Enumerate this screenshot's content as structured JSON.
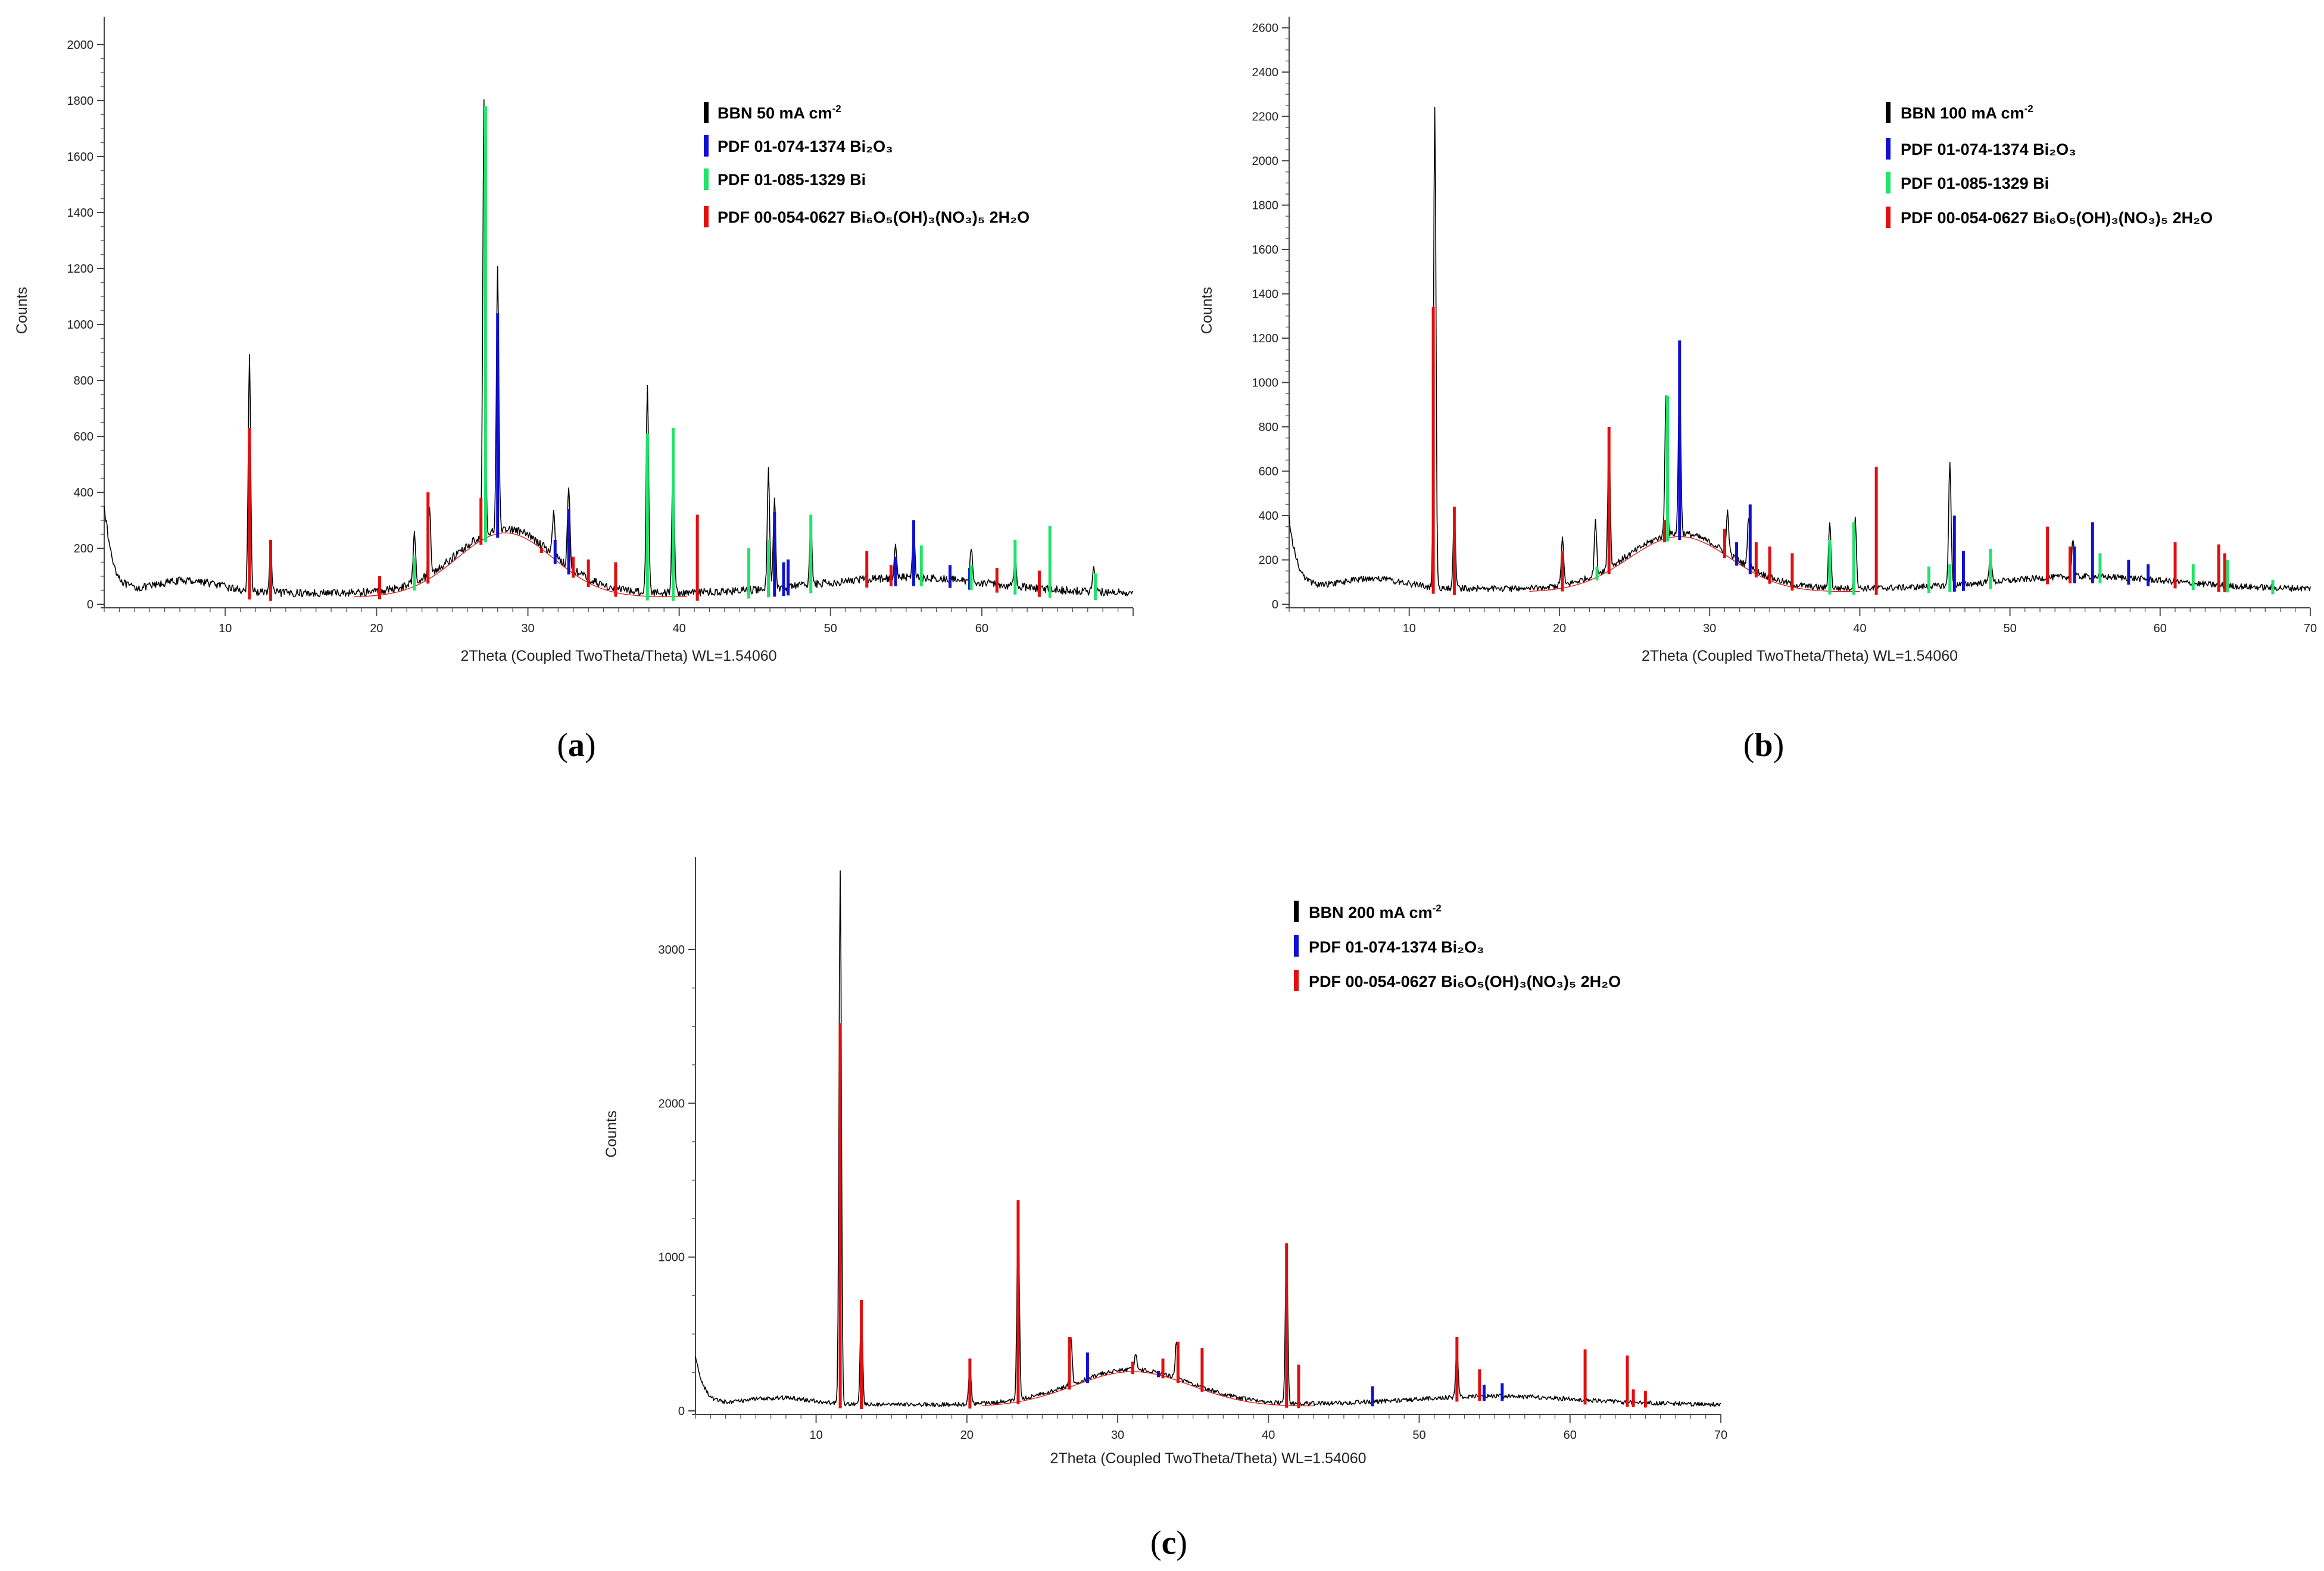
{
  "colors": {
    "measured": "#000000",
    "bi2o3": "#1010d0",
    "bi": "#22e36a",
    "bbn_ref": "#e01010",
    "background_fit": "#e01010"
  },
  "panels": [
    {
      "label_letter": "a",
      "xlabel": "2Theta (Coupled TwoTheta/Theta) WL=1.54060",
      "ylabel": "Counts",
      "xticks": [
        "10",
        "20",
        "30",
        "40",
        "50",
        "60"
      ],
      "yticks": [
        "0",
        "200",
        "400",
        "600",
        "800",
        "1000",
        "1200",
        "1400",
        "1600",
        "1800",
        "2000"
      ],
      "legend": [
        {
          "color_key": "measured",
          "text": "BBN 50 mA cm",
          "sup": "-2"
        },
        {
          "color_key": "bi2o3",
          "text": "PDF 01-074-1374 Bi₂O₃",
          "sup": ""
        },
        {
          "color_key": "bi",
          "text": "PDF 01-085-1329 Bi",
          "sup": ""
        },
        {
          "color_key": "bbn_ref",
          "text": "PDF 00-054-0627 Bi₆O₅(OH)₃(NO₃)₅ 2H₂O",
          "sup": ""
        }
      ]
    },
    {
      "label_letter": "b",
      "xlabel": "2Theta (Coupled TwoTheta/Theta) WL=1.54060",
      "ylabel": "Counts",
      "xticks": [
        "10",
        "20",
        "30",
        "40",
        "50",
        "60",
        "70"
      ],
      "yticks": [
        "0",
        "200",
        "400",
        "600",
        "800",
        "1000",
        "1200",
        "1400",
        "1600",
        "1800",
        "2000",
        "2200",
        "2400",
        "2600"
      ],
      "legend": [
        {
          "color_key": "measured",
          "text": "BBN 100 mA cm",
          "sup": "-2"
        },
        {
          "color_key": "bi2o3",
          "text": "PDF 01-074-1374 Bi₂O₃",
          "sup": ""
        },
        {
          "color_key": "bi",
          "text": "PDF 01-085-1329 Bi",
          "sup": ""
        },
        {
          "color_key": "bbn_ref",
          "text": "PDF 00-054-0627 Bi₆O₅(OH)₃(NO₃)₅ 2H₂O",
          "sup": ""
        }
      ]
    },
    {
      "label_letter": "c",
      "xlabel": "2Theta (Coupled TwoTheta/Theta) WL=1.54060",
      "ylabel": "Counts",
      "xticks": [
        "10",
        "20",
        "30",
        "40",
        "50",
        "60",
        "70"
      ],
      "yticks": [
        "0",
        "1000",
        "2000",
        "3000"
      ],
      "legend": [
        {
          "color_key": "measured",
          "text": "BBN 200 mA cm",
          "sup": "-2"
        },
        {
          "color_key": "bi2o3",
          "text": "PDF 01-074-1374 Bi₂O₃",
          "sup": ""
        },
        {
          "color_key": "bbn_ref",
          "text": "PDF 00-054-0627 Bi₆O₅(OH)₃(NO₃)₅ 2H₂O",
          "sup": ""
        }
      ]
    }
  ],
  "chart_data": [
    {
      "type": "line",
      "title": "(a) BBN 50 mA cm-2",
      "xlabel": "2Theta (Coupled TwoTheta/Theta) WL=1.54060",
      "ylabel": "Counts",
      "xlim": [
        2,
        70
      ],
      "ylim": [
        0,
        2100
      ],
      "xticks": [
        10,
        20,
        30,
        40,
        50,
        60
      ],
      "yticks": [
        0,
        200,
        400,
        600,
        800,
        1000,
        1200,
        1400,
        1600,
        1800,
        2000
      ],
      "measured_peaks": [
        {
          "x": 11.6,
          "y": 880
        },
        {
          "x": 13.0,
          "y": 190
        },
        {
          "x": 22.5,
          "y": 270
        },
        {
          "x": 23.5,
          "y": 350
        },
        {
          "x": 27.1,
          "y": 1790
        },
        {
          "x": 28.0,
          "y": 1200
        },
        {
          "x": 31.7,
          "y": 330
        },
        {
          "x": 32.7,
          "y": 420
        },
        {
          "x": 37.9,
          "y": 790
        },
        {
          "x": 39.6,
          "y": 560
        },
        {
          "x": 45.9,
          "y": 480
        },
        {
          "x": 46.3,
          "y": 380
        },
        {
          "x": 48.7,
          "y": 300
        },
        {
          "x": 54.3,
          "y": 220
        },
        {
          "x": 55.5,
          "y": 260
        },
        {
          "x": 59.3,
          "y": 200
        },
        {
          "x": 62.2,
          "y": 170
        },
        {
          "x": 67.4,
          "y": 130
        }
      ],
      "series": [
        {
          "name": "PDF 01-074-1374 Bi2O3",
          "color_key": "bi2o3",
          "x": [
            28.0,
            31.8,
            32.7,
            46.3,
            46.9,
            47.2,
            54.3,
            55.5,
            57.9,
            59.2
          ],
          "y": [
            1040,
            230,
            340,
            330,
            150,
            160,
            170,
            300,
            140,
            130
          ]
        },
        {
          "name": "PDF 01-085-1329 Bi",
          "color_key": "bi",
          "x": [
            22.5,
            27.2,
            37.9,
            39.6,
            44.6,
            45.9,
            48.7,
            56.0,
            59.3,
            62.2,
            64.5,
            67.5
          ],
          "y": [
            170,
            1780,
            610,
            630,
            200,
            230,
            320,
            210,
            140,
            230,
            280,
            110
          ]
        },
        {
          "name": "PDF 00-054-0627 Bi6O5(OH)3(NO3)5 2H2O",
          "color_key": "bbn_ref",
          "x": [
            11.6,
            13.0,
            20.2,
            23.4,
            26.9,
            30.9,
            33.0,
            34.0,
            35.8,
            41.2,
            52.4,
            54.0,
            61.0,
            63.8
          ],
          "y": [
            630,
            230,
            100,
            400,
            380,
            200,
            170,
            160,
            150,
            320,
            190,
            140,
            130,
            120
          ]
        }
      ]
    },
    {
      "type": "line",
      "title": "(b) BBN 100 mA cm-2",
      "xlabel": "2Theta (Coupled TwoTheta/Theta) WL=1.54060",
      "ylabel": "Counts",
      "xlim": [
        2,
        70
      ],
      "ylim": [
        0,
        2650
      ],
      "xticks": [
        10,
        20,
        30,
        40,
        50,
        60,
        70
      ],
      "yticks": [
        0,
        200,
        400,
        600,
        800,
        1000,
        1200,
        1400,
        1600,
        1800,
        2000,
        2200,
        2400,
        2600
      ],
      "measured_peaks": [
        {
          "x": 11.7,
          "y": 2230
        },
        {
          "x": 13.0,
          "y": 420
        },
        {
          "x": 20.2,
          "y": 300
        },
        {
          "x": 22.4,
          "y": 370
        },
        {
          "x": 23.3,
          "y": 760
        },
        {
          "x": 27.1,
          "y": 940
        },
        {
          "x": 28.0,
          "y": 1050
        },
        {
          "x": 31.2,
          "y": 420
        },
        {
          "x": 32.6,
          "y": 400
        },
        {
          "x": 38.0,
          "y": 380
        },
        {
          "x": 39.7,
          "y": 390
        },
        {
          "x": 46.0,
          "y": 650
        },
        {
          "x": 48.7,
          "y": 250
        },
        {
          "x": 54.2,
          "y": 300
        }
      ],
      "series": [
        {
          "name": "PDF 01-074-1374 Bi2O3",
          "color_key": "bi2o3",
          "x": [
            28.0,
            31.8,
            32.7,
            46.3,
            46.9,
            54.3,
            55.5,
            57.9,
            59.2
          ],
          "y": [
            1190,
            280,
            450,
            400,
            240,
            260,
            370,
            200,
            180
          ]
        },
        {
          "name": "PDF 01-085-1329 Bi",
          "color_key": "bi",
          "x": [
            22.5,
            27.2,
            38.0,
            39.6,
            44.6,
            46.0,
            48.7,
            56.0,
            62.2,
            64.5,
            67.5
          ],
          "y": [
            170,
            940,
            290,
            370,
            170,
            180,
            250,
            230,
            180,
            200,
            110
          ]
        },
        {
          "name": "PDF 00-054-0627 Bi6O5(OH)3(NO3)5 2H2O",
          "color_key": "bbn_ref",
          "x": [
            11.6,
            13.0,
            20.2,
            23.3,
            27.0,
            31.0,
            33.1,
            34.0,
            35.5,
            41.1,
            52.5,
            54.0,
            61.0,
            63.9,
            64.3
          ],
          "y": [
            1340,
            440,
            240,
            800,
            380,
            340,
            280,
            260,
            230,
            620,
            350,
            260,
            280,
            270,
            230
          ]
        }
      ]
    },
    {
      "type": "line",
      "title": "(c) BBN 200 mA cm-2",
      "xlabel": "2Theta (Coupled TwoTheta/Theta) WL=1.54060",
      "ylabel": "Counts",
      "xlim": [
        2,
        70
      ],
      "ylim": [
        0,
        3600
      ],
      "xticks": [
        10,
        20,
        30,
        40,
        50,
        60,
        70
      ],
      "yticks": [
        0,
        1000,
        2000,
        3000
      ],
      "measured_peaks": [
        {
          "x": 11.6,
          "y": 3520
        },
        {
          "x": 13.0,
          "y": 700
        },
        {
          "x": 20.2,
          "y": 300
        },
        {
          "x": 23.4,
          "y": 1320
        },
        {
          "x": 26.9,
          "y": 490
        },
        {
          "x": 31.2,
          "y": 380
        },
        {
          "x": 33.9,
          "y": 460
        },
        {
          "x": 41.2,
          "y": 1070
        },
        {
          "x": 52.5,
          "y": 420
        }
      ],
      "series": [
        {
          "name": "PDF 01-074-1374 Bi2O3",
          "color_key": "bi2o3",
          "x": [
            28.0,
            32.7,
            46.9,
            54.3,
            55.5
          ],
          "y": [
            380,
            260,
            160,
            170,
            180
          ]
        },
        {
          "name": "PDF 00-054-0627 Bi6O5(OH)3(NO3)5 2H2O",
          "color_key": "bbn_ref",
          "x": [
            11.6,
            13.0,
            20.2,
            23.4,
            26.8,
            31.0,
            33.0,
            34.0,
            35.6,
            41.2,
            42.0,
            52.5,
            54.0,
            61.0,
            63.8,
            64.2,
            65.0
          ],
          "y": [
            2520,
            720,
            340,
            1370,
            480,
            320,
            340,
            450,
            410,
            1090,
            300,
            480,
            270,
            400,
            360,
            140,
            130
          ]
        }
      ]
    }
  ]
}
